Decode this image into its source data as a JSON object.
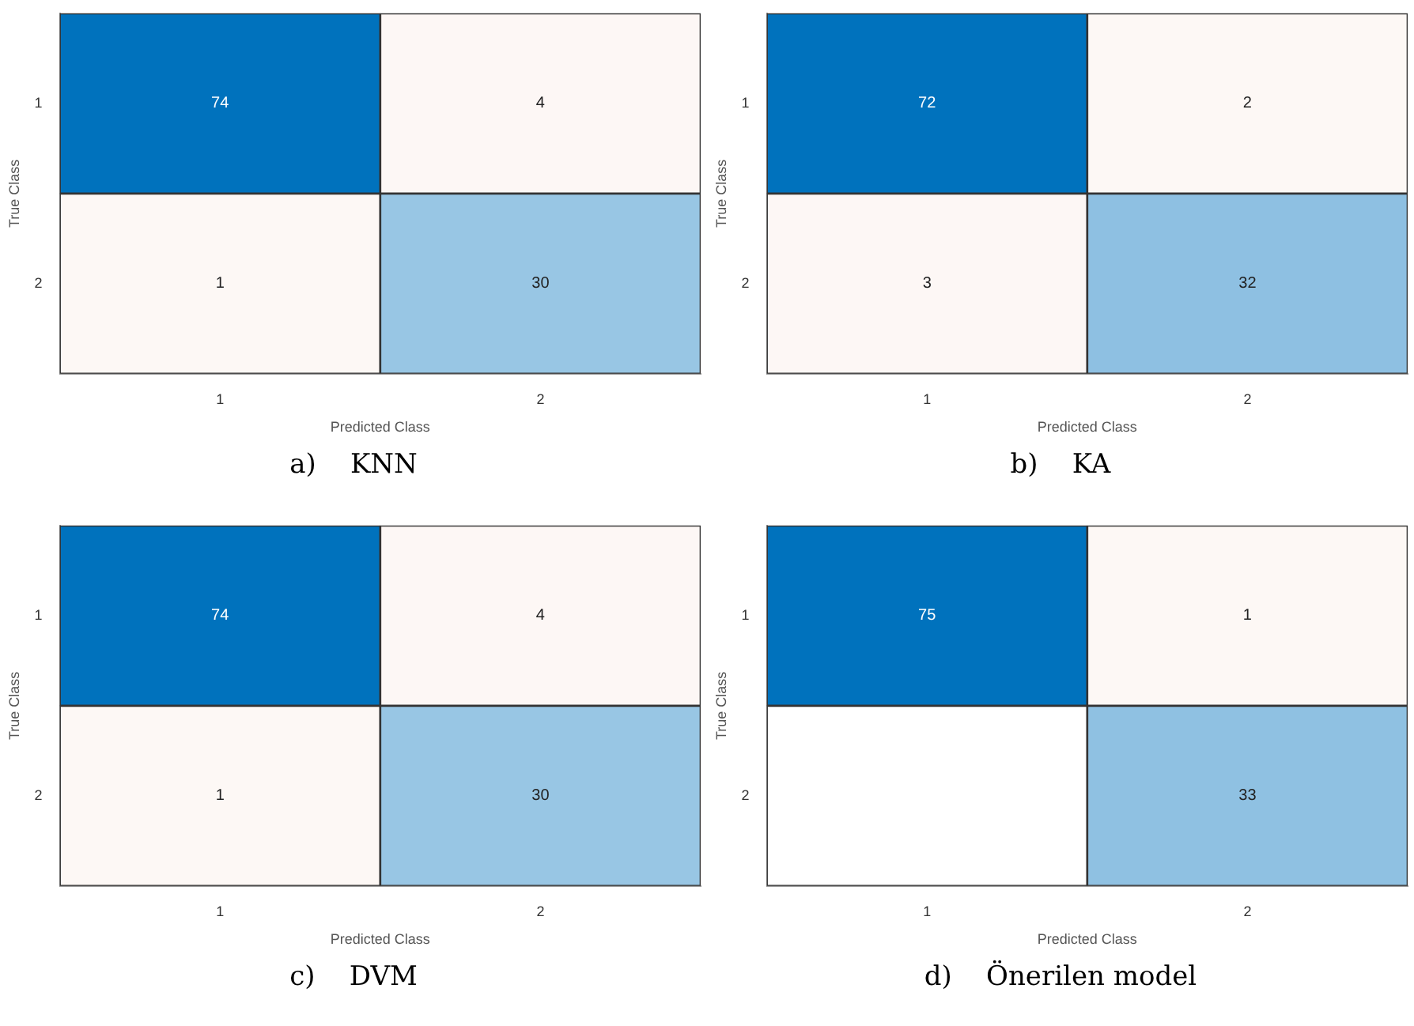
{
  "chart_data": [
    {
      "type": "heatmap",
      "title": "a)    KNN",
      "xlabel": "Predicted Class",
      "ylabel": "True Class",
      "categories": [
        "1",
        "2"
      ],
      "y_categories": [
        "1",
        "2"
      ],
      "cells": [
        [
          74,
          4
        ],
        [
          1,
          30
        ]
      ],
      "data_labels": true,
      "grid": false,
      "legend": false
    },
    {
      "type": "heatmap",
      "title": "b)    KA",
      "xlabel": "Predicted Class",
      "ylabel": "True Class",
      "categories": [
        "1",
        "2"
      ],
      "y_categories": [
        "1",
        "2"
      ],
      "cells": [
        [
          72,
          2
        ],
        [
          3,
          32
        ]
      ],
      "data_labels": true,
      "grid": false,
      "legend": false
    },
    {
      "type": "heatmap",
      "title": "c)    DVM",
      "xlabel": "Predicted Class",
      "ylabel": "True Class",
      "categories": [
        "1",
        "2"
      ],
      "y_categories": [
        "1",
        "2"
      ],
      "cells": [
        [
          74,
          4
        ],
        [
          1,
          30
        ]
      ],
      "data_labels": true,
      "grid": false,
      "legend": false
    },
    {
      "type": "heatmap",
      "title": "d)    Önerilen model",
      "xlabel": "Predicted Class",
      "ylabel": "True Class",
      "categories": [
        "1",
        "2"
      ],
      "y_categories": [
        "1",
        "2"
      ],
      "cells": [
        [
          75,
          1
        ],
        [
          null,
          33
        ]
      ],
      "data_labels": true,
      "grid": false,
      "legend": false
    }
  ]
}
